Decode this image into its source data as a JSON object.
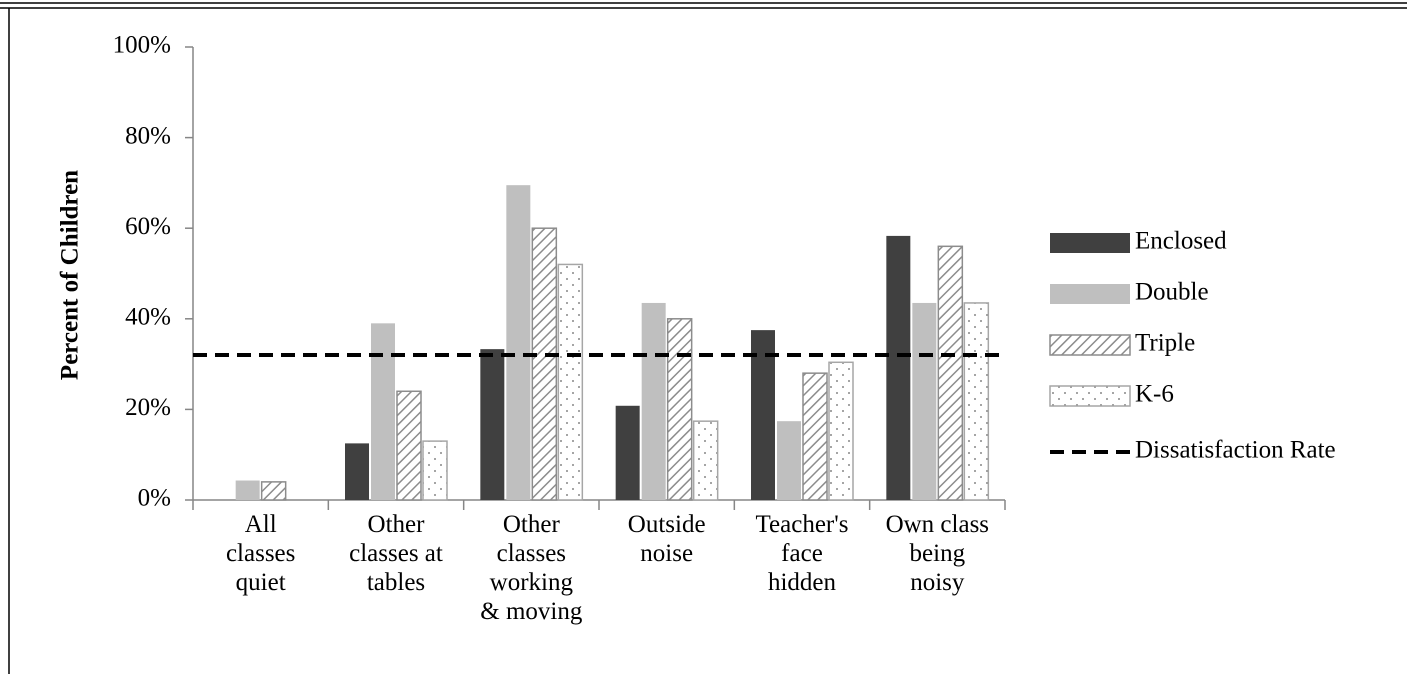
{
  "chart_data": {
    "type": "bar",
    "y_label": "Percent of Children",
    "categories": [
      "All\nclasses\nquiet",
      "Other\nclasses at\ntables",
      "Other\nclasses\nworking\n& moving",
      "Outside\nnoise",
      "Teacher's\nface\nhidden",
      "Own class\nbeing\nnoisy"
    ],
    "series": [
      {
        "name": "Enclosed",
        "color": "#404040",
        "values": [
          0,
          12.5,
          33.3,
          20.8,
          37.5,
          58.3
        ]
      },
      {
        "name": "Double",
        "color": "#bfbfbf",
        "values": [
          4.3,
          39,
          69.5,
          43.5,
          17.4,
          43.5
        ]
      },
      {
        "name": "Triple",
        "color": "#8c8c8c",
        "pattern": "hatch",
        "values": [
          4,
          24,
          60,
          40,
          28,
          56
        ]
      },
      {
        "name": "K-6",
        "color": "#a6a6a6",
        "pattern": "dots",
        "values": [
          0,
          13,
          52,
          17.4,
          30.4,
          43.5
        ]
      }
    ],
    "reference": {
      "name": "Dissatisfaction Rate",
      "value": 32,
      "color": "#000000"
    },
    "ylim": [
      0,
      100
    ],
    "yticks": [
      {
        "value": 0,
        "label": "0%"
      },
      {
        "value": 20,
        "label": "20%"
      },
      {
        "value": 40,
        "label": "40%"
      },
      {
        "value": 60,
        "label": "60%"
      },
      {
        "value": 80,
        "label": "80%"
      },
      {
        "value": 100,
        "label": "100%"
      }
    ],
    "legend": "right"
  }
}
